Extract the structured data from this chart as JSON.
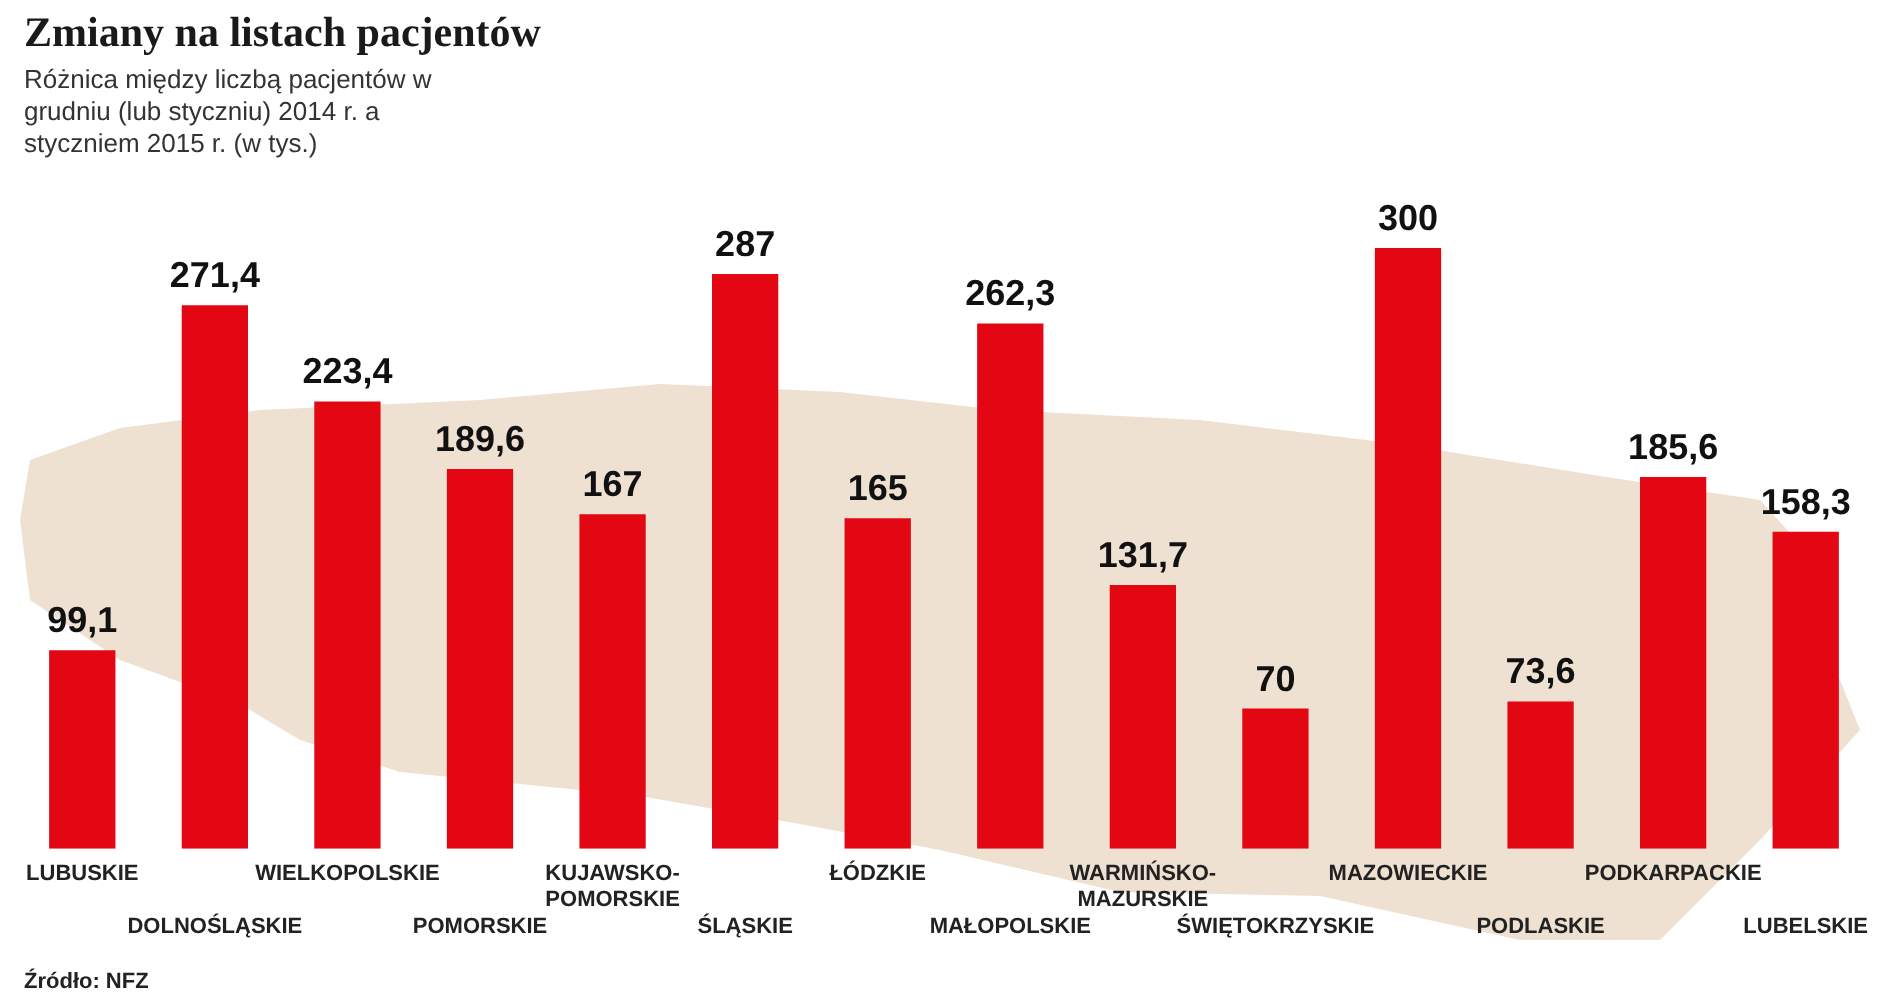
{
  "chart_data": {
    "type": "bar",
    "title": "Zmiany na listach pacjentów",
    "subtitle": "Różnica między liczbą pacjentów w grudniu (lub styczniu) 2014 r. a styczniem 2015 r. (w tys.)",
    "categories": [
      "LUBUSKIE",
      "DOLNOŚLĄSKIE",
      "WIELKOPOLSKIE",
      "POMORSKIE",
      "KUJAWSKO-POMORSKIE",
      "ŚLĄSKIE",
      "ŁÓDZKIE",
      "MAŁOPOLSKIE",
      "WARMIŃSKO-MAZURSKIE",
      "ŚWIĘTOKRZYSKIE",
      "MAZOWIECKIE",
      "PODLASKIE",
      "PODKARPACKIE",
      "LUBELSKIE"
    ],
    "values": [
      99.1,
      271.4,
      223.4,
      189.6,
      167,
      287,
      165,
      262.3,
      131.7,
      70,
      300,
      73.6,
      185.6,
      158.3
    ],
    "value_labels": [
      "99,1",
      "271,4",
      "223,4",
      "189,6",
      "167",
      "287",
      "165",
      "262,3",
      "131,7",
      "70",
      "300",
      "73,6",
      "185,6",
      "158,3"
    ],
    "color": "#e30613",
    "annotations": [
      "Źródło: NFZ"
    ]
  }
}
